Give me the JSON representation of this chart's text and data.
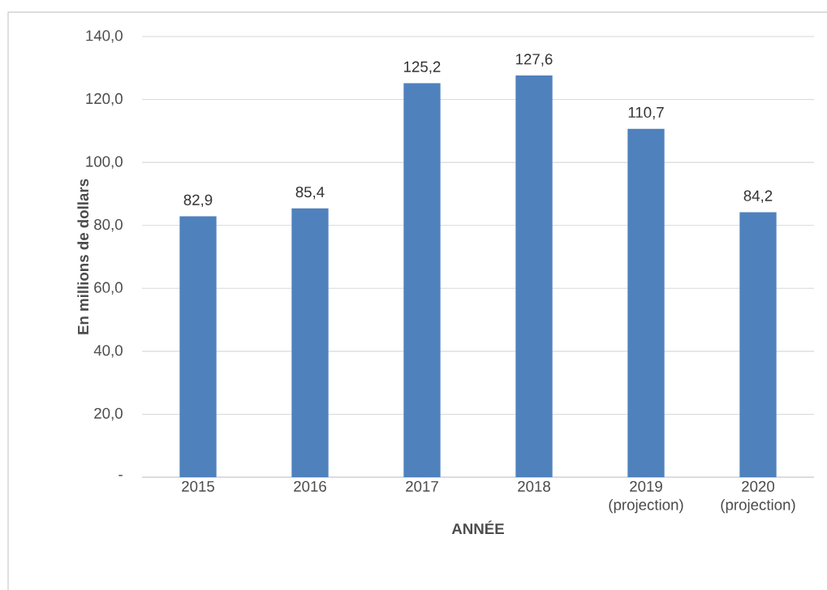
{
  "chart_data": {
    "type": "bar",
    "categories": [
      "2015",
      "2016",
      "2017",
      "2018",
      "2019 (projection)",
      "2020 (projection)"
    ],
    "values": [
      82.9,
      85.4,
      125.2,
      127.6,
      110.7,
      84.2
    ],
    "value_labels": [
      "82,9",
      "85,4",
      "125,2",
      "127,6",
      "110,7",
      "84,2"
    ],
    "color": "#4f81bd",
    "xlabel": "ANNÉE",
    "ylabel": "En millions de dollars",
    "ylim": [
      0,
      140
    ],
    "yticks": [
      {
        "value": 0,
        "label": "-"
      },
      {
        "value": 20,
        "label": "20,0"
      },
      {
        "value": 40,
        "label": "40,0"
      },
      {
        "value": 60,
        "label": "60,0"
      },
      {
        "value": 80,
        "label": "80,0"
      },
      {
        "value": 100,
        "label": "100,0"
      },
      {
        "value": 120,
        "label": "120,0"
      },
      {
        "value": 140,
        "label": "140,0"
      }
    ],
    "grid": "y"
  }
}
